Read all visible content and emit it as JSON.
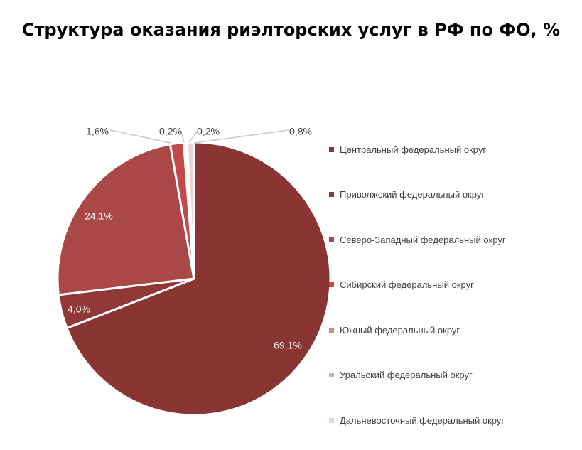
{
  "title": "Структура оказания риэлторских услуг в РФ по ФО, %",
  "chart_data": {
    "type": "pie",
    "title": "Структура оказания риэлторских услуг в РФ по ФО, %",
    "legend_position": "right",
    "slices": [
      {
        "name": "Центральный федеральный округ",
        "value": 69.1,
        "label": "69,1%",
        "color": "#8b3434"
      },
      {
        "name": "Приволжский федеральный округ",
        "value": 4.0,
        "label": "4,0%",
        "color": "#923737"
      },
      {
        "name": "Северо-Западный федеральный округ",
        "value": 24.1,
        "label": "24,1%",
        "color": "#aa4848"
      },
      {
        "name": "Сибирский федеральный округ",
        "value": 1.6,
        "label": "1,6%",
        "color": "#c24a4a"
      },
      {
        "name": "Южный федеральный округ",
        "value": 0.2,
        "label": "0,2%",
        "color": "#d08a8a"
      },
      {
        "name": "Уральский федеральный округ",
        "value": 0.2,
        "label": "0,2%",
        "color": "#dcacac"
      },
      {
        "name": "Дальневосточный федеральный округ",
        "value": 0.8,
        "label": "0,8%",
        "color": "#ecd2d2"
      }
    ]
  }
}
